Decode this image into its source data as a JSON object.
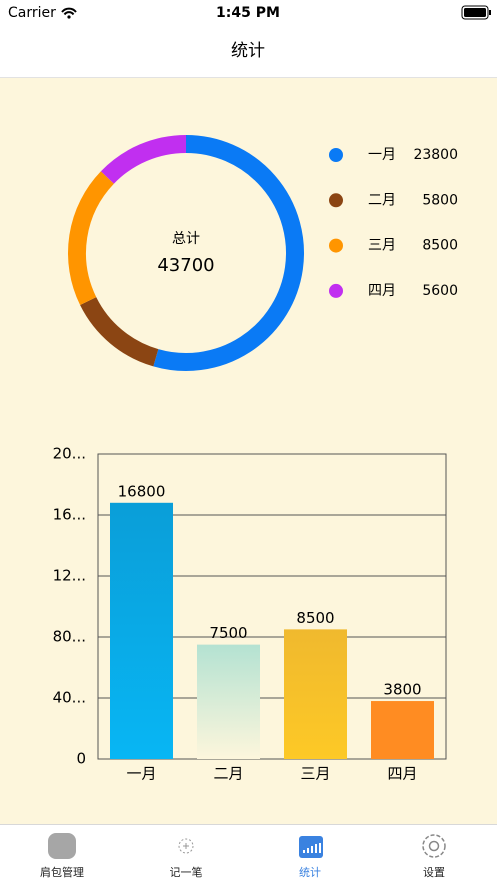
{
  "status_bar": {
    "carrier": "Carrier",
    "time": "1:45 PM"
  },
  "nav": {
    "title": "统计"
  },
  "chart_data": [
    {
      "type": "pie",
      "donut": true,
      "center_label": "总计",
      "total": 43700,
      "categories": [
        "一月",
        "二月",
        "三月",
        "四月"
      ],
      "values": [
        23800,
        5800,
        8500,
        5600
      ],
      "colors": [
        "#0a7af5",
        "#8b4513",
        "#ff9500",
        "#c12ff0"
      ]
    },
    {
      "type": "bar",
      "categories": [
        "一月",
        "二月",
        "三月",
        "四月"
      ],
      "values": [
        16800,
        7500,
        8500,
        3800
      ],
      "gradients": [
        [
          "#0a9ed8",
          "#08b6f4"
        ],
        [
          "#b4e2d2",
          "#fdf6dc"
        ],
        [
          "#f0b92e",
          "#fdc926"
        ],
        [
          "#ff8c22",
          "#ff8c22"
        ]
      ],
      "ylim": [
        0,
        20000
      ],
      "yticks": [
        0,
        {
          "value": 4000,
          "label": "40..."
        },
        {
          "value": 8000,
          "label": "80..."
        },
        {
          "value": 12000,
          "label": "12..."
        },
        {
          "value": 16000,
          "label": "16..."
        },
        {
          "value": 20000,
          "label": "20..."
        }
      ],
      "grid": true
    }
  ],
  "tabs": [
    {
      "label": "肩包管理",
      "active": false
    },
    {
      "label": "记一笔",
      "active": false
    },
    {
      "label": "统计",
      "active": true
    },
    {
      "label": "设置",
      "active": false
    }
  ]
}
